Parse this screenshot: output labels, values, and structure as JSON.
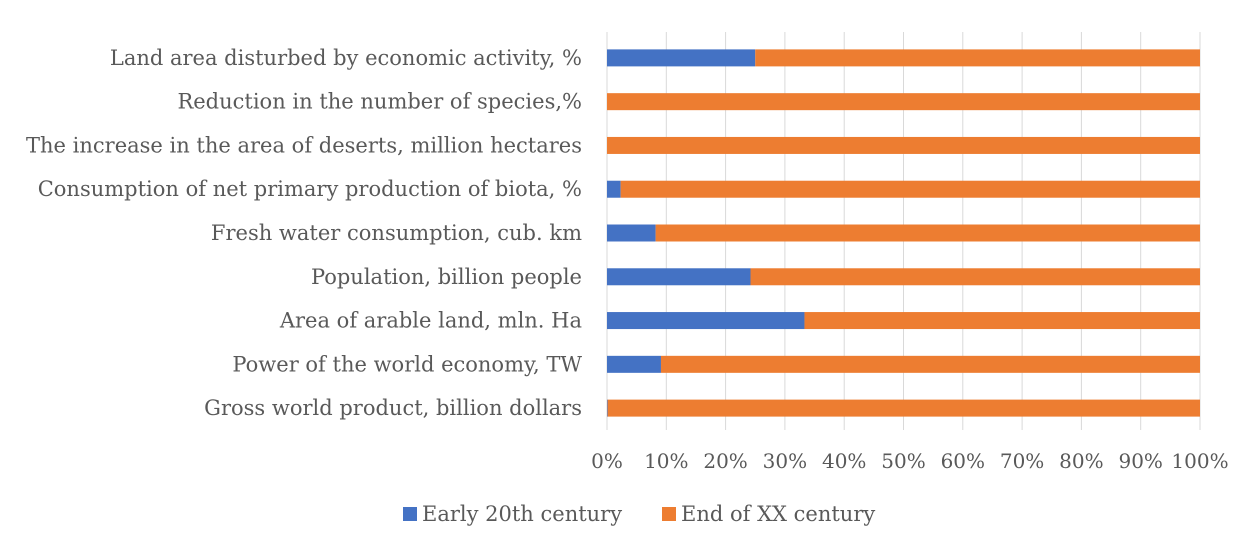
{
  "chart_data": {
    "type": "bar",
    "orientation": "horizontal",
    "stacked": "percent",
    "categories": [
      "Land area disturbed by economic activity, %",
      "Reduction in the number of species,%",
      "The increase in the area of deserts, million hectares",
      "Consumption of net primary production of biota, %",
      "Fresh water consumption, cub. km",
      "Population, billion people",
      "Area of arable land, mln. Ha",
      "Power of the world economy, TW",
      "Gross world product, billion dollars"
    ],
    "series": [
      {
        "name": "Early 20th century",
        "color": "#4472C4",
        "values": [
          25,
          0,
          0,
          2.3,
          8.2,
          24.2,
          33.3,
          9.1,
          0.1
        ]
      },
      {
        "name": "End of XX century",
        "color": "#ED7D31",
        "values": [
          75,
          100,
          100,
          97.7,
          91.8,
          75.8,
          66.7,
          90.9,
          99.9
        ]
      }
    ],
    "xlim": [
      0,
      100
    ],
    "x_ticks": [
      "0%",
      "10%",
      "20%",
      "30%",
      "40%",
      "50%",
      "60%",
      "70%",
      "80%",
      "90%",
      "100%"
    ],
    "grid": true,
    "legend_position": "bottom"
  }
}
